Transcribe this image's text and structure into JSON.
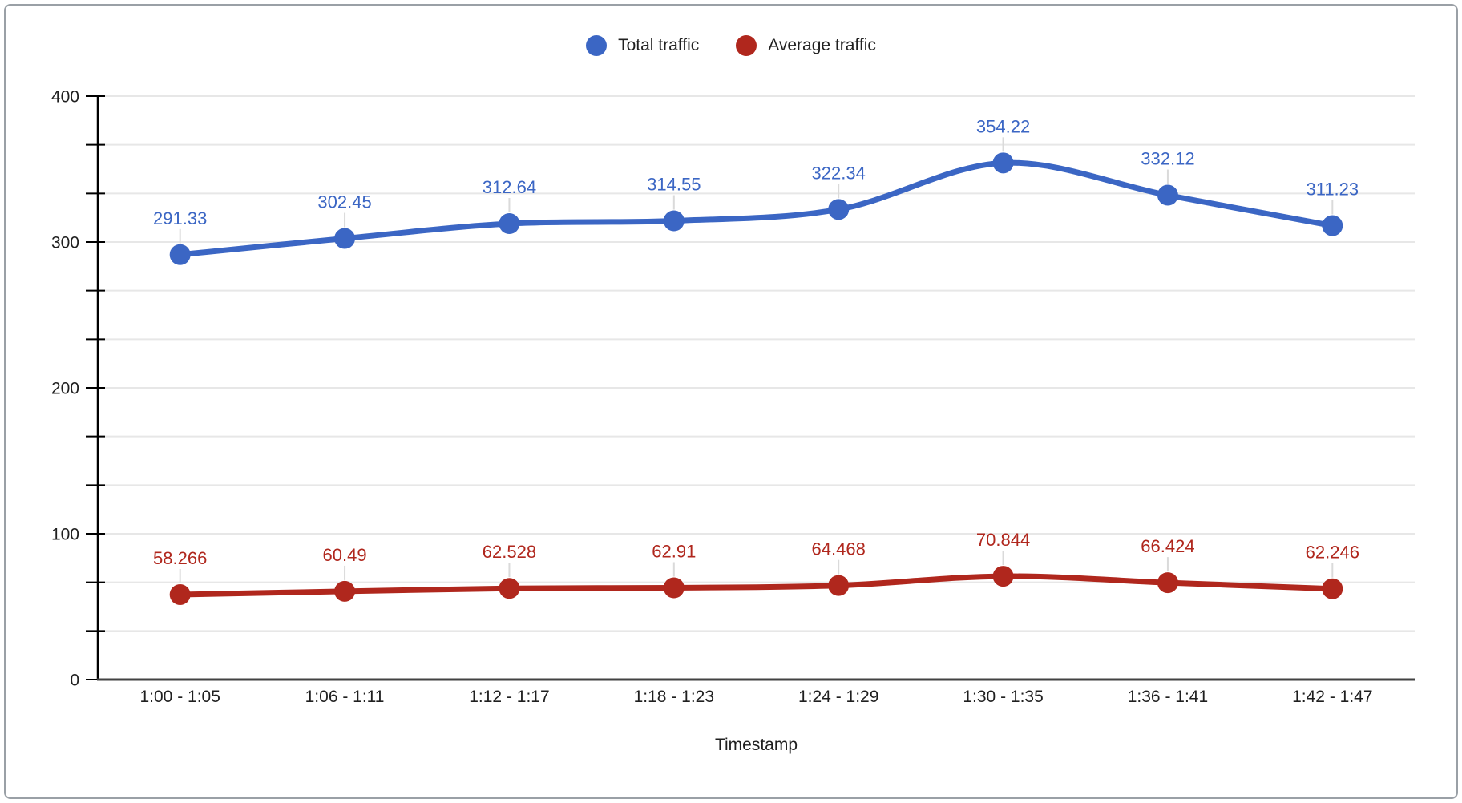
{
  "chart_data": {
    "type": "line",
    "smooth": true,
    "title": "",
    "xlabel": "Timestamp",
    "ylabel": "",
    "categories": [
      "1:00 - 1:05",
      "1:06 - 1:11",
      "1:12 - 1:17",
      "1:18 - 1:23",
      "1:24 - 1:29",
      "1:30 - 1:35",
      "1:36 - 1:41",
      "1:42 - 1:47"
    ],
    "series": [
      {
        "name": "Total traffic",
        "color": "#3B66C4",
        "values": [
          291.33,
          302.45,
          312.64,
          314.55,
          322.34,
          354.22,
          332.12,
          311.23
        ],
        "labels": [
          "291.33",
          "302.45",
          "312.64",
          "314.55",
          "322.34",
          "354.22",
          "332.12",
          "311.23"
        ]
      },
      {
        "name": "Average traffic",
        "color": "#B0271D",
        "values": [
          58.266,
          60.49,
          62.528,
          62.91,
          64.468,
          70.844,
          66.424,
          62.246
        ],
        "labels": [
          "58.266",
          "60.49",
          "62.528",
          "62.91",
          "64.468",
          "70.844",
          "66.424",
          "62.246"
        ]
      }
    ],
    "y_axis": {
      "min": 0,
      "max": 400,
      "major_step": 100,
      "minor_step": 33.333,
      "tick_labels": [
        "0",
        "100",
        "200",
        "300",
        "400"
      ]
    },
    "legend_position": "top",
    "grid": true,
    "style": {
      "gridline_color": "#E7E7E7",
      "axis_line_color": "#424242",
      "tick_color": "#000000",
      "tick_label_color": "#1F1F1F",
      "callout_line_color": "#DADADA",
      "data_label_font_size": 22,
      "marker_radius": 13,
      "line_width": 7
    }
  }
}
